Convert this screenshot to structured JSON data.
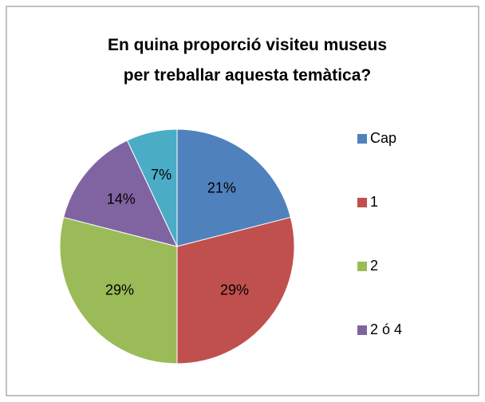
{
  "chart_data": {
    "type": "pie",
    "title": "En quina proporció visiteu museus per treballar aquesta temàtica?",
    "categories": [
      "Cap",
      "1",
      "2",
      "2 ó 4",
      null
    ],
    "values": [
      21,
      29,
      29,
      14,
      7
    ],
    "value_labels": [
      "21%",
      "29%",
      "29%",
      "14%",
      "7%"
    ],
    "colors": [
      "#4f81bd",
      "#c0504d",
      "#9bbb59",
      "#8064a2",
      "#4bacc6"
    ],
    "legend": "right"
  }
}
